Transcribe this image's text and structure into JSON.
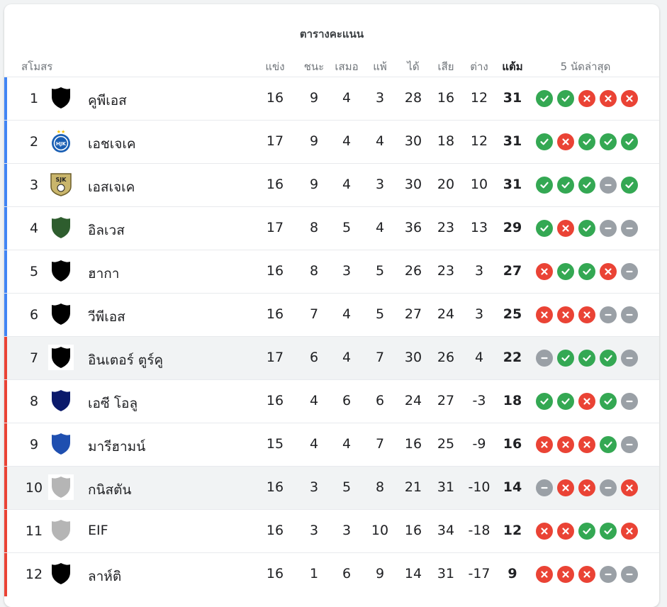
{
  "title": "ตารางคะแนน",
  "columns": {
    "club": "สโมสร",
    "played": "แข่ง",
    "won": "ชนะ",
    "drawn": "เสมอ",
    "lost": "แพ้",
    "gf": "ได้",
    "ga": "เสีย",
    "gd": "ต่าง",
    "points": "แต้ม",
    "form": "5 นัดล่าสุด"
  },
  "colors": {
    "upper_bar": "#4285f4",
    "lower_bar": "#ea4335",
    "win": "#34a853",
    "loss": "#ea4335",
    "draw": "#9aa0a6"
  },
  "rows": [
    {
      "pos": "1",
      "name": "คูพีเอส",
      "played": "16",
      "won": "9",
      "drawn": "4",
      "lost": "3",
      "gf": "28",
      "ga": "16",
      "gd": "12",
      "points": "31",
      "form": [
        "w",
        "w",
        "l",
        "l",
        "l"
      ],
      "logo": "black-shield-icon",
      "group": "upper"
    },
    {
      "pos": "2",
      "name": "เอชเจเค",
      "played": "17",
      "won": "9",
      "drawn": "4",
      "lost": "4",
      "gf": "30",
      "ga": "18",
      "gd": "12",
      "points": "31",
      "form": [
        "w",
        "l",
        "w",
        "w",
        "w"
      ],
      "logo": "hjk-crest-icon",
      "group": "upper"
    },
    {
      "pos": "3",
      "name": "เอสเจเค",
      "played": "16",
      "won": "9",
      "drawn": "4",
      "lost": "3",
      "gf": "30",
      "ga": "20",
      "gd": "10",
      "points": "31",
      "form": [
        "w",
        "w",
        "w",
        "d",
        "w"
      ],
      "logo": "sjk-crest-icon",
      "group": "upper"
    },
    {
      "pos": "4",
      "name": "อิลเวส",
      "played": "17",
      "won": "8",
      "drawn": "5",
      "lost": "4",
      "gf": "36",
      "ga": "23",
      "gd": "13",
      "points": "29",
      "form": [
        "w",
        "l",
        "w",
        "d",
        "d"
      ],
      "logo": "green-shield-icon",
      "group": "upper"
    },
    {
      "pos": "5",
      "name": "ฮากา",
      "played": "16",
      "won": "8",
      "drawn": "3",
      "lost": "5",
      "gf": "26",
      "ga": "23",
      "gd": "3",
      "points": "27",
      "form": [
        "l",
        "w",
        "w",
        "l",
        "d"
      ],
      "logo": "black-shield-icon",
      "group": "upper"
    },
    {
      "pos": "6",
      "name": "วีพีเอส",
      "played": "16",
      "won": "7",
      "drawn": "4",
      "lost": "5",
      "gf": "27",
      "ga": "24",
      "gd": "3",
      "points": "25",
      "form": [
        "l",
        "l",
        "l",
        "d",
        "d"
      ],
      "logo": "black-shield-icon",
      "group": "upper"
    },
    {
      "pos": "7",
      "name": "อินเตอร์ ตูร์คู",
      "played": "17",
      "won": "6",
      "drawn": "4",
      "lost": "7",
      "gf": "30",
      "ga": "26",
      "gd": "4",
      "points": "22",
      "form": [
        "d",
        "w",
        "w",
        "w",
        "d"
      ],
      "logo": "black-shield-icon",
      "group": "lower",
      "highlight": true
    },
    {
      "pos": "8",
      "name": "เอซี โอลู",
      "played": "16",
      "won": "4",
      "drawn": "6",
      "lost": "6",
      "gf": "24",
      "ga": "27",
      "gd": "-3",
      "points": "18",
      "form": [
        "w",
        "w",
        "l",
        "w",
        "d"
      ],
      "logo": "navy-shield-icon",
      "group": "lower"
    },
    {
      "pos": "9",
      "name": "มารีฮามน์",
      "played": "15",
      "won": "4",
      "drawn": "4",
      "lost": "7",
      "gf": "16",
      "ga": "25",
      "gd": "-9",
      "points": "16",
      "form": [
        "l",
        "l",
        "l",
        "w",
        "d"
      ],
      "logo": "blue-shield-icon",
      "group": "lower"
    },
    {
      "pos": "10",
      "name": "กนิสตัน",
      "played": "16",
      "won": "3",
      "drawn": "5",
      "lost": "8",
      "gf": "21",
      "ga": "31",
      "gd": "-10",
      "points": "14",
      "form": [
        "d",
        "l",
        "l",
        "d",
        "l"
      ],
      "logo": "grey-shield-icon",
      "group": "lower",
      "highlight": true
    },
    {
      "pos": "11",
      "name": "EIF",
      "played": "16",
      "won": "3",
      "drawn": "3",
      "lost": "10",
      "gf": "16",
      "ga": "34",
      "gd": "-18",
      "points": "12",
      "form": [
        "l",
        "l",
        "w",
        "w",
        "l"
      ],
      "logo": "grey-shield-icon",
      "group": "lower"
    },
    {
      "pos": "12",
      "name": "ลาห์ติ",
      "played": "16",
      "won": "1",
      "drawn": "6",
      "lost": "9",
      "gf": "14",
      "ga": "31",
      "gd": "-17",
      "points": "9",
      "form": [
        "l",
        "l",
        "l",
        "d",
        "d"
      ],
      "logo": "black-shield-icon",
      "group": "lower"
    }
  ]
}
